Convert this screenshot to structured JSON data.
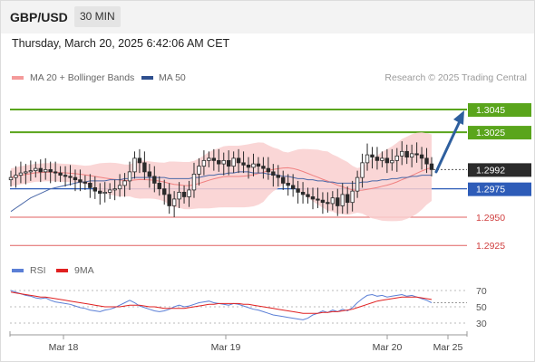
{
  "header": {
    "symbol": "GBP/USD",
    "timeframe": "30 MIN",
    "datetime": "Thursday, March 20, 2025 6:42:06 AM CET"
  },
  "attribution": "Research © 2025 Trading Central",
  "colors": {
    "green_level": "#5aa51c",
    "red_level": "#e06060",
    "blue_level": "#2e5cb8",
    "arrow": "#2e5f9e",
    "bollinger_band": "#f9cfcf",
    "ma20": "#f08080",
    "ma50": "#4a68a8",
    "candle": "#2a2a2a",
    "rsi": "#5b7fd6",
    "rsi_ma": "#e02020"
  },
  "chart_data": [
    {
      "type": "candlestick",
      "title": "GBP/USD",
      "legend": [
        "MA 20 + Bollinger Bands",
        "MA 50"
      ],
      "legend_position": "top-left",
      "x_tick_labels": [
        "Mar 18",
        "Mar 19",
        "Mar 20",
        "Mar 25"
      ],
      "ylim": [
        1.2918,
        1.3065
      ],
      "current_price": 1.2992,
      "levels": [
        {
          "value": 1.3045,
          "label": "1.3045",
          "color": "green",
          "style": "solid"
        },
        {
          "value": 1.3025,
          "label": "1.3025",
          "color": "green",
          "style": "solid"
        },
        {
          "value": 1.2975,
          "label": "1.2975",
          "color": "blue",
          "style": "solid"
        },
        {
          "value": 1.295,
          "label": "1.2950",
          "color": "red",
          "style": "solid"
        },
        {
          "value": 1.2925,
          "label": "1.2925",
          "color": "red",
          "style": "solid"
        }
      ],
      "close_series": [
        1.2985,
        1.2987,
        1.2989,
        1.299,
        1.2991,
        1.2993,
        1.299,
        1.2992,
        1.299,
        1.2989,
        1.2987,
        1.2986,
        1.2985,
        1.2983,
        1.2981,
        1.298,
        1.2976,
        1.2973,
        1.2971,
        1.2972,
        1.2974,
        1.2975,
        1.2978,
        1.2982,
        1.299,
        1.3002,
        1.2998,
        1.299,
        1.2986,
        1.298,
        1.2975,
        1.297,
        1.296,
        1.2966,
        1.2972,
        1.2968,
        1.2974,
        1.2988,
        1.2995,
        1.3,
        1.3002,
        1.3,
        1.2997,
        1.3,
        1.2995,
        1.3002,
        1.2998,
        1.2996,
        1.2994,
        1.2997,
        1.2995,
        1.2993,
        1.299,
        1.2987,
        1.2985,
        1.298,
        1.2978,
        1.2975,
        1.2972,
        1.297,
        1.2968,
        1.2966,
        1.2965,
        1.2963,
        1.2962,
        1.2967,
        1.296,
        1.297,
        1.2963,
        1.2973,
        1.2985,
        1.2998,
        1.3005,
        1.3003,
        1.3,
        1.3002,
        1.2998,
        1.3,
        1.3004,
        1.3008,
        1.3003,
        1.3006,
        1.3005,
        1.3002,
        1.2997,
        1.2992
      ],
      "ma50_series": [
        1.2955,
        1.2958,
        1.2961,
        1.2964,
        1.2967,
        1.2969,
        1.2971,
        1.2973,
        1.2975,
        1.2976,
        1.2977,
        1.2978,
        1.2979,
        1.298,
        1.2981,
        1.2981,
        1.2982,
        1.2982,
        1.2982,
        1.2982,
        1.2983,
        1.2983,
        1.2983,
        1.2984,
        1.2984,
        1.2985,
        1.2985,
        1.2985,
        1.2985,
        1.2985,
        1.2985,
        1.2985,
        1.2984,
        1.2984,
        1.2984,
        1.2984,
        1.2984,
        1.2985,
        1.2985,
        1.2986,
        1.2987,
        1.2987,
        1.2988,
        1.2988,
        1.2989,
        1.2989,
        1.299,
        1.299,
        1.299,
        1.2989,
        1.2989,
        1.2989,
        1.2988,
        1.2988,
        1.2987,
        1.2986,
        1.2986,
        1.2985,
        1.2984,
        1.2984,
        1.2983,
        1.2983,
        1.2982,
        1.2982,
        1.2981,
        1.2981,
        1.298,
        1.298,
        1.298,
        1.298,
        1.298,
        1.2981,
        1.2981,
        1.2982,
        1.2982,
        1.2983,
        1.2983,
        1.2984,
        1.2984,
        1.2985,
        1.2985,
        1.2986,
        1.2986,
        1.2987,
        1.2987,
        1.2987
      ]
    },
    {
      "type": "line",
      "title": "RSI",
      "legend": [
        "RSI",
        "9MA"
      ],
      "legend_position": "top-left",
      "ylim": [
        20,
        80
      ],
      "y_ticks": [
        70,
        50,
        30
      ],
      "rsi_series": [
        70,
        68,
        66,
        64,
        63,
        61,
        60,
        61,
        58,
        56,
        55,
        54,
        53,
        51,
        49,
        48,
        46,
        45,
        44,
        46,
        47,
        49,
        52,
        55,
        58,
        55,
        51,
        49,
        47,
        45,
        44,
        45,
        47,
        50,
        52,
        50,
        51,
        53,
        55,
        56,
        57,
        55,
        54,
        53,
        52,
        54,
        53,
        51,
        49,
        47,
        46,
        44,
        42,
        40,
        39,
        38,
        37,
        36,
        35,
        34,
        36,
        40,
        42,
        45,
        43,
        46,
        44,
        47,
        45,
        49,
        55,
        60,
        64,
        65,
        63,
        64,
        62,
        63,
        64,
        65,
        63,
        64,
        62,
        60,
        58,
        55
      ],
      "rsi_ma_series": [
        68,
        67,
        66,
        65,
        64,
        63,
        62,
        62,
        61,
        60,
        59,
        58,
        57,
        56,
        55,
        54,
        53,
        52,
        51,
        50,
        50,
        50,
        50,
        51,
        52,
        52,
        52,
        51,
        50,
        50,
        49,
        48,
        48,
        48,
        48,
        48,
        49,
        50,
        51,
        52,
        53,
        53,
        54,
        54,
        54,
        54,
        54,
        53,
        53,
        52,
        51,
        50,
        49,
        48,
        47,
        46,
        45,
        44,
        43,
        42,
        42,
        42,
        42,
        43,
        43,
        44,
        44,
        45,
        46,
        47,
        49,
        51,
        53,
        55,
        57,
        58,
        59,
        60,
        61,
        62,
        62,
        62,
        62,
        61,
        60,
        59
      ]
    }
  ]
}
